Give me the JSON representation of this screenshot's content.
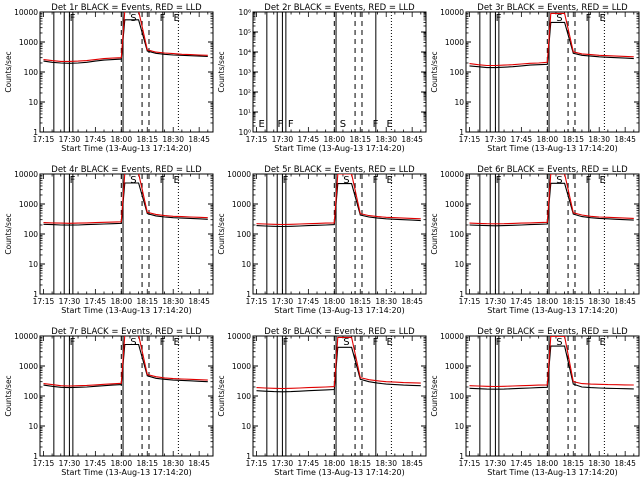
{
  "figure": {
    "background": "#ffffff",
    "ink_color": "#000000",
    "events_color": "#000000",
    "lld_color": "#e00000"
  },
  "chart_data": [
    {
      "type": "line",
      "title": "Det 1r BLACK = Events, RED = LLD",
      "xlabel": "Start Time (13-Aug-13 17:14:20)",
      "ylabel": "Counts/sec",
      "y_scale": "log",
      "ylim": [
        1,
        10000
      ],
      "x_ticks": [
        "17:15",
        "17:30",
        "17:45",
        "18:00",
        "18:15",
        "18:30",
        "18:45"
      ],
      "y_ticks": [
        "1",
        "10",
        "100",
        "1000",
        "10000"
      ],
      "x": [
        "17:15",
        "17:20",
        "17:25",
        "17:30",
        "17:35",
        "17:40",
        "17:45",
        "17:50",
        "17:55",
        "18:00",
        "18:02",
        "18:05",
        "18:08",
        "18:10",
        "18:15",
        "18:20",
        "18:25",
        "18:30",
        "18:35",
        "18:40",
        "18:45",
        "18:50"
      ],
      "series": [
        {
          "name": "Events",
          "values": [
            230,
            210,
            200,
            195,
            200,
            210,
            230,
            250,
            260,
            270,
            5500,
            5500,
            5500,
            5500,
            500,
            420,
            390,
            370,
            360,
            350,
            340,
            330
          ]
        },
        {
          "name": "LLD",
          "values": [
            260,
            240,
            225,
            225,
            230,
            240,
            260,
            280,
            290,
            300,
            11000,
            11000,
            11000,
            11000,
            550,
            460,
            430,
            410,
            390,
            380,
            370,
            360
          ]
        }
      ],
      "markers": [
        {
          "label": "F",
          "time": "17:29"
        },
        {
          "label": "S",
          "time": "18:04"
        },
        {
          "label": "F",
          "time": "18:21"
        },
        {
          "label": "E",
          "time": "18:29"
        }
      ]
    },
    {
      "type": "line",
      "title": "Det 2r BLACK = Events, RED = LLD",
      "xlabel": "Start Time (13-Aug-13 17:14:20)",
      "ylabel": "Counts/sec",
      "y_scale": "log",
      "ylim": [
        1,
        1000000
      ],
      "x_ticks": [
        "17:15",
        "17:30",
        "17:45",
        "18:00",
        "18:15",
        "18:30",
        "18:45"
      ],
      "y_ticks": [
        "10⁰",
        "10¹",
        "10²",
        "10³",
        "10⁴",
        "10⁵",
        "10⁶"
      ],
      "x": [],
      "series": [],
      "markers": [
        {
          "label": "E",
          "time": "17:15"
        },
        {
          "label": "F",
          "time": "17:26"
        },
        {
          "label": "F",
          "time": "17:32"
        },
        {
          "label": "S",
          "time": "18:02"
        },
        {
          "label": "F",
          "time": "18:21"
        },
        {
          "label": "E",
          "time": "18:29"
        }
      ]
    },
    {
      "type": "line",
      "title": "Det 3r BLACK = Events, RED = LLD",
      "xlabel": "Start Time (13-Aug-13 17:14:20)",
      "ylabel": "Counts/sec",
      "y_scale": "log",
      "ylim": [
        1,
        10000
      ],
      "x_ticks": [
        "17:15",
        "17:30",
        "17:45",
        "18:00",
        "18:15",
        "18:30",
        "18:45"
      ],
      "y_ticks": [
        "1",
        "10",
        "100",
        "1000",
        "10000"
      ],
      "x": [
        "17:15",
        "17:20",
        "17:25",
        "17:30",
        "17:35",
        "17:40",
        "17:45",
        "17:50",
        "17:55",
        "18:00",
        "18:02",
        "18:05",
        "18:08",
        "18:10",
        "18:15",
        "18:20",
        "18:25",
        "18:30",
        "18:35",
        "18:40",
        "18:45",
        "18:50"
      ],
      "series": [
        {
          "name": "Events",
          "values": [
            160,
            150,
            140,
            140,
            145,
            150,
            160,
            170,
            175,
            180,
            4500,
            4500,
            4500,
            4500,
            420,
            360,
            340,
            320,
            310,
            300,
            290,
            280
          ]
        },
        {
          "name": "LLD",
          "values": [
            190,
            175,
            165,
            165,
            170,
            175,
            185,
            195,
            200,
            210,
            9000,
            9000,
            9000,
            9000,
            470,
            400,
            380,
            360,
            350,
            340,
            330,
            320
          ]
        }
      ],
      "markers": [
        {
          "label": "F",
          "time": "17:29"
        },
        {
          "label": "S",
          "time": "18:04"
        },
        {
          "label": "F",
          "time": "18:21"
        },
        {
          "label": "E",
          "time": "18:29"
        }
      ]
    },
    {
      "type": "line",
      "title": "Det 4r BLACK = Events, RED = LLD",
      "xlabel": "Start Time (13-Aug-13 17:14:20)",
      "ylabel": "Counts/sec",
      "y_scale": "log",
      "ylim": [
        1,
        10000
      ],
      "x_ticks": [
        "17:15",
        "17:30",
        "17:45",
        "18:00",
        "18:15",
        "18:30",
        "18:45"
      ],
      "y_ticks": [
        "1",
        "10",
        "100",
        "1000",
        "10000"
      ],
      "x": [
        "17:15",
        "17:20",
        "17:25",
        "17:30",
        "17:35",
        "17:40",
        "17:45",
        "17:50",
        "17:55",
        "18:00",
        "18:02",
        "18:05",
        "18:08",
        "18:10",
        "18:15",
        "18:20",
        "18:25",
        "18:30",
        "18:35",
        "18:40",
        "18:45",
        "18:50"
      ],
      "series": [
        {
          "name": "Events",
          "values": [
            210,
            205,
            200,
            198,
            200,
            205,
            210,
            215,
            220,
            225,
            5000,
            5000,
            5000,
            5000,
            480,
            400,
            370,
            350,
            340,
            330,
            320,
            310
          ]
        },
        {
          "name": "LLD",
          "values": [
            240,
            235,
            230,
            228,
            230,
            235,
            240,
            245,
            250,
            255,
            10500,
            10500,
            10500,
            10500,
            530,
            450,
            410,
            390,
            380,
            370,
            360,
            350
          ]
        }
      ],
      "markers": [
        {
          "label": "F",
          "time": "17:29"
        },
        {
          "label": "S",
          "time": "18:04"
        },
        {
          "label": "F",
          "time": "18:21"
        },
        {
          "label": "E",
          "time": "18:29"
        }
      ]
    },
    {
      "type": "line",
      "title": "Det 5r BLACK = Events, RED = LLD",
      "xlabel": "Start Time (13-Aug-13 17:14:20)",
      "ylabel": "Counts/sec",
      "y_scale": "log",
      "ylim": [
        1,
        10000
      ],
      "x_ticks": [
        "17:15",
        "17:30",
        "17:45",
        "18:00",
        "18:15",
        "18:30",
        "18:45"
      ],
      "y_ticks": [
        "1",
        "10",
        "100",
        "1000",
        "10000"
      ],
      "x": [
        "17:15",
        "17:20",
        "17:25",
        "17:30",
        "17:35",
        "17:40",
        "17:45",
        "17:50",
        "17:55",
        "18:00",
        "18:02",
        "18:05",
        "18:08",
        "18:10",
        "18:15",
        "18:20",
        "18:25",
        "18:30",
        "18:35",
        "18:40",
        "18:45",
        "18:50"
      ],
      "series": [
        {
          "name": "Events",
          "values": [
            190,
            185,
            180,
            178,
            180,
            185,
            190,
            195,
            200,
            205,
            4800,
            4800,
            4800,
            4800,
            430,
            370,
            340,
            320,
            310,
            300,
            290,
            280
          ]
        },
        {
          "name": "LLD",
          "values": [
            220,
            215,
            210,
            208,
            210,
            215,
            220,
            225,
            230,
            235,
            10000,
            10000,
            10000,
            10000,
            480,
            410,
            380,
            360,
            350,
            340,
            330,
            320
          ]
        }
      ],
      "markers": [
        {
          "label": "F",
          "time": "17:29"
        },
        {
          "label": "S",
          "time": "18:04"
        },
        {
          "label": "F",
          "time": "18:21"
        },
        {
          "label": "E",
          "time": "18:29"
        }
      ]
    },
    {
      "type": "line",
      "title": "Det 6r BLACK = Events, RED = LLD",
      "xlabel": "Start Time (13-Aug-13 17:14:20)",
      "ylabel": "Counts/sec",
      "y_scale": "log",
      "ylim": [
        1,
        10000
      ],
      "x_ticks": [
        "17:15",
        "17:30",
        "17:45",
        "18:00",
        "18:15",
        "18:30",
        "18:45"
      ],
      "y_ticks": [
        "1",
        "10",
        "100",
        "1000",
        "10000"
      ],
      "x": [
        "17:15",
        "17:20",
        "17:25",
        "17:30",
        "17:35",
        "17:40",
        "17:45",
        "17:50",
        "17:55",
        "18:00",
        "18:02",
        "18:05",
        "18:08",
        "18:10",
        "18:15",
        "18:20",
        "18:25",
        "18:30",
        "18:35",
        "18:40",
        "18:45",
        "18:50"
      ],
      "series": [
        {
          "name": "Events",
          "values": [
            200,
            195,
            190,
            188,
            190,
            195,
            200,
            205,
            210,
            215,
            4900,
            4900,
            4900,
            4900,
            460,
            380,
            350,
            330,
            320,
            310,
            300,
            290
          ]
        },
        {
          "name": "LLD",
          "values": [
            230,
            225,
            220,
            218,
            220,
            225,
            230,
            235,
            240,
            245,
            10200,
            10200,
            10200,
            10200,
            510,
            430,
            390,
            370,
            360,
            350,
            340,
            330
          ]
        }
      ],
      "markers": [
        {
          "label": "F",
          "time": "17:29"
        },
        {
          "label": "S",
          "time": "18:04"
        },
        {
          "label": "F",
          "time": "18:21"
        },
        {
          "label": "E",
          "time": "18:29"
        }
      ]
    },
    {
      "type": "line",
      "title": "Det 7r BLACK = Events, RED = LLD",
      "xlabel": "Start Time (13-Aug-13 17:14:20)",
      "ylabel": "Counts/sec",
      "y_scale": "log",
      "ylim": [
        1,
        10000
      ],
      "x_ticks": [
        "17:15",
        "17:30",
        "17:45",
        "18:00",
        "18:15",
        "18:30",
        "18:45"
      ],
      "y_ticks": [
        "1",
        "10",
        "100",
        "1000",
        "10000"
      ],
      "x": [
        "17:15",
        "17:20",
        "17:25",
        "17:30",
        "17:35",
        "17:40",
        "17:45",
        "17:50",
        "17:55",
        "18:00",
        "18:02",
        "18:05",
        "18:08",
        "18:10",
        "18:15",
        "18:20",
        "18:25",
        "18:30",
        "18:35",
        "18:40",
        "18:45",
        "18:50"
      ],
      "series": [
        {
          "name": "Events",
          "values": [
            230,
            210,
            195,
            190,
            195,
            200,
            210,
            220,
            230,
            240,
            5200,
            5200,
            5200,
            5200,
            470,
            390,
            360,
            340,
            330,
            320,
            310,
            300
          ]
        },
        {
          "name": "LLD",
          "values": [
            260,
            240,
            220,
            215,
            220,
            225,
            235,
            245,
            255,
            265,
            10800,
            10800,
            10800,
            10800,
            520,
            440,
            400,
            380,
            370,
            360,
            350,
            340
          ]
        }
      ],
      "markers": [
        {
          "label": "F",
          "time": "17:29"
        },
        {
          "label": "S",
          "time": "18:04"
        },
        {
          "label": "F",
          "time": "18:21"
        },
        {
          "label": "E",
          "time": "18:29"
        }
      ]
    },
    {
      "type": "line",
      "title": "Det 8r BLACK = Events, RED = LLD",
      "xlabel": "Start Time (13-Aug-13 17:14:20)",
      "ylabel": "Counts/sec",
      "y_scale": "log",
      "ylim": [
        1,
        10000
      ],
      "x_ticks": [
        "17:15",
        "17:30",
        "17:45",
        "18:00",
        "18:15",
        "18:30",
        "18:45"
      ],
      "y_ticks": [
        "1",
        "10",
        "100",
        "1000",
        "10000"
      ],
      "x": [
        "17:15",
        "17:20",
        "17:25",
        "17:30",
        "17:35",
        "17:40",
        "17:45",
        "17:50",
        "17:55",
        "18:00",
        "18:02",
        "18:05",
        "18:08",
        "18:10",
        "18:15",
        "18:20",
        "18:25",
        "18:30",
        "18:35",
        "18:40",
        "18:45",
        "18:50"
      ],
      "series": [
        {
          "name": "Events",
          "values": [
            150,
            145,
            140,
            138,
            140,
            145,
            150,
            155,
            160,
            165,
            4200,
            4200,
            4200,
            4200,
            360,
            300,
            270,
            250,
            240,
            230,
            225,
            220
          ]
        },
        {
          "name": "LLD",
          "values": [
            190,
            185,
            180,
            178,
            180,
            185,
            190,
            195,
            200,
            205,
            9000,
            9000,
            9000,
            9000,
            410,
            350,
            320,
            300,
            290,
            280,
            275,
            270
          ]
        }
      ],
      "markers": [
        {
          "label": "F",
          "time": "17:29"
        },
        {
          "label": "S",
          "time": "18:04"
        },
        {
          "label": "F",
          "time": "18:21"
        },
        {
          "label": "E",
          "time": "18:29"
        }
      ]
    },
    {
      "type": "line",
      "title": "Det 9r BLACK = Events, RED = LLD",
      "xlabel": "Start Time (13-Aug-13 17:14:20)",
      "ylabel": "Counts/sec",
      "y_scale": "log",
      "ylim": [
        1,
        10000
      ],
      "x_ticks": [
        "17:15",
        "17:30",
        "17:45",
        "18:00",
        "18:15",
        "18:30",
        "18:45"
      ],
      "y_ticks": [
        "1",
        "10",
        "100",
        "1000",
        "10000"
      ],
      "x": [
        "17:15",
        "17:20",
        "17:25",
        "17:30",
        "17:35",
        "17:40",
        "17:45",
        "17:50",
        "17:55",
        "18:00",
        "18:02",
        "18:05",
        "18:08",
        "18:10",
        "18:15",
        "18:20",
        "18:25",
        "18:30",
        "18:35",
        "18:40",
        "18:45",
        "18:50"
      ],
      "series": [
        {
          "name": "Events",
          "values": [
            180,
            175,
            170,
            168,
            170,
            175,
            180,
            185,
            190,
            195,
            4600,
            4600,
            4600,
            4600,
            250,
            200,
            190,
            185,
            180,
            178,
            175,
            172
          ]
        },
        {
          "name": "LLD",
          "values": [
            220,
            215,
            210,
            208,
            210,
            215,
            220,
            225,
            230,
            235,
            9800,
            9800,
            9800,
            9800,
            300,
            260,
            250,
            245,
            240,
            238,
            235,
            232
          ]
        }
      ],
      "markers": [
        {
          "label": "F",
          "time": "17:29"
        },
        {
          "label": "S",
          "time": "18:04"
        },
        {
          "label": "F",
          "time": "18:21"
        },
        {
          "label": "E",
          "time": "18:29"
        }
      ]
    }
  ]
}
